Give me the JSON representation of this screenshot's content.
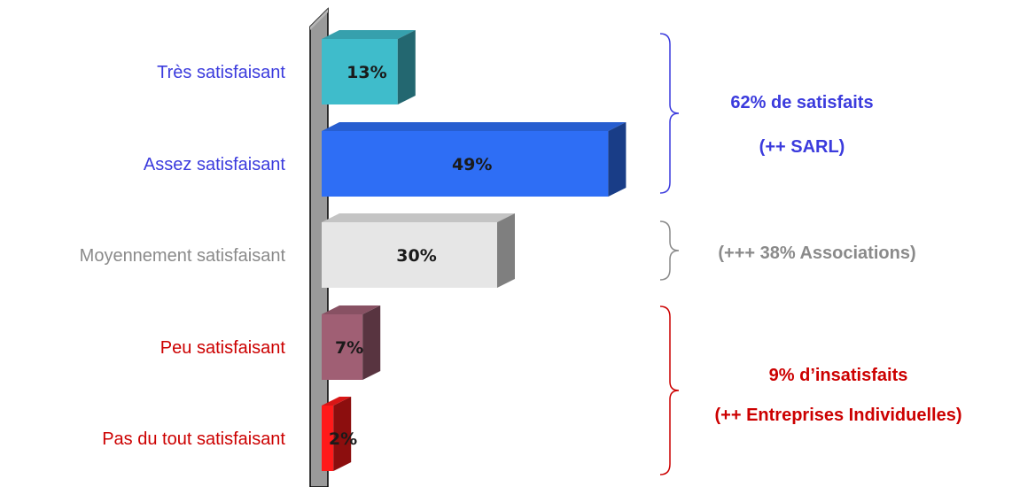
{
  "chart_data": {
    "type": "bar",
    "orientation": "horizontal",
    "categories": [
      "Très satisfaisant",
      "Assez satisfaisant",
      "Moyennement satisfaisant",
      "Peu satisfaisant",
      "Pas du tout satisfaisant"
    ],
    "values": [
      13,
      49,
      30,
      7,
      2
    ],
    "value_labels": [
      "13%",
      "49%",
      "30%",
      "7%",
      "2%"
    ],
    "colors": [
      "#3fbccb",
      "#2e6ef5",
      "#e6e6e6",
      "#a05f74",
      "#ff1a1a"
    ],
    "label_colors": [
      "#3b3bdd",
      "#3b3bdd",
      "#8a8a8a",
      "#cc0000",
      "#cc0000"
    ],
    "annotations": [
      {
        "lines": [
          "62% de satisfaits",
          "(++ SARL)"
        ],
        "color": "#3b3bdd",
        "covers": [
          0,
          1
        ]
      },
      {
        "lines": [
          "(+++ 38% Associations)"
        ],
        "color": "#8a8a8a",
        "covers": [
          2
        ]
      },
      {
        "lines": [
          "9% d’insatisfaits",
          "(++ Entreprises Individuelles)"
        ],
        "color": "#cc0000",
        "covers": [
          3,
          4
        ]
      }
    ],
    "title": "",
    "xlabel": "",
    "ylabel": ""
  }
}
